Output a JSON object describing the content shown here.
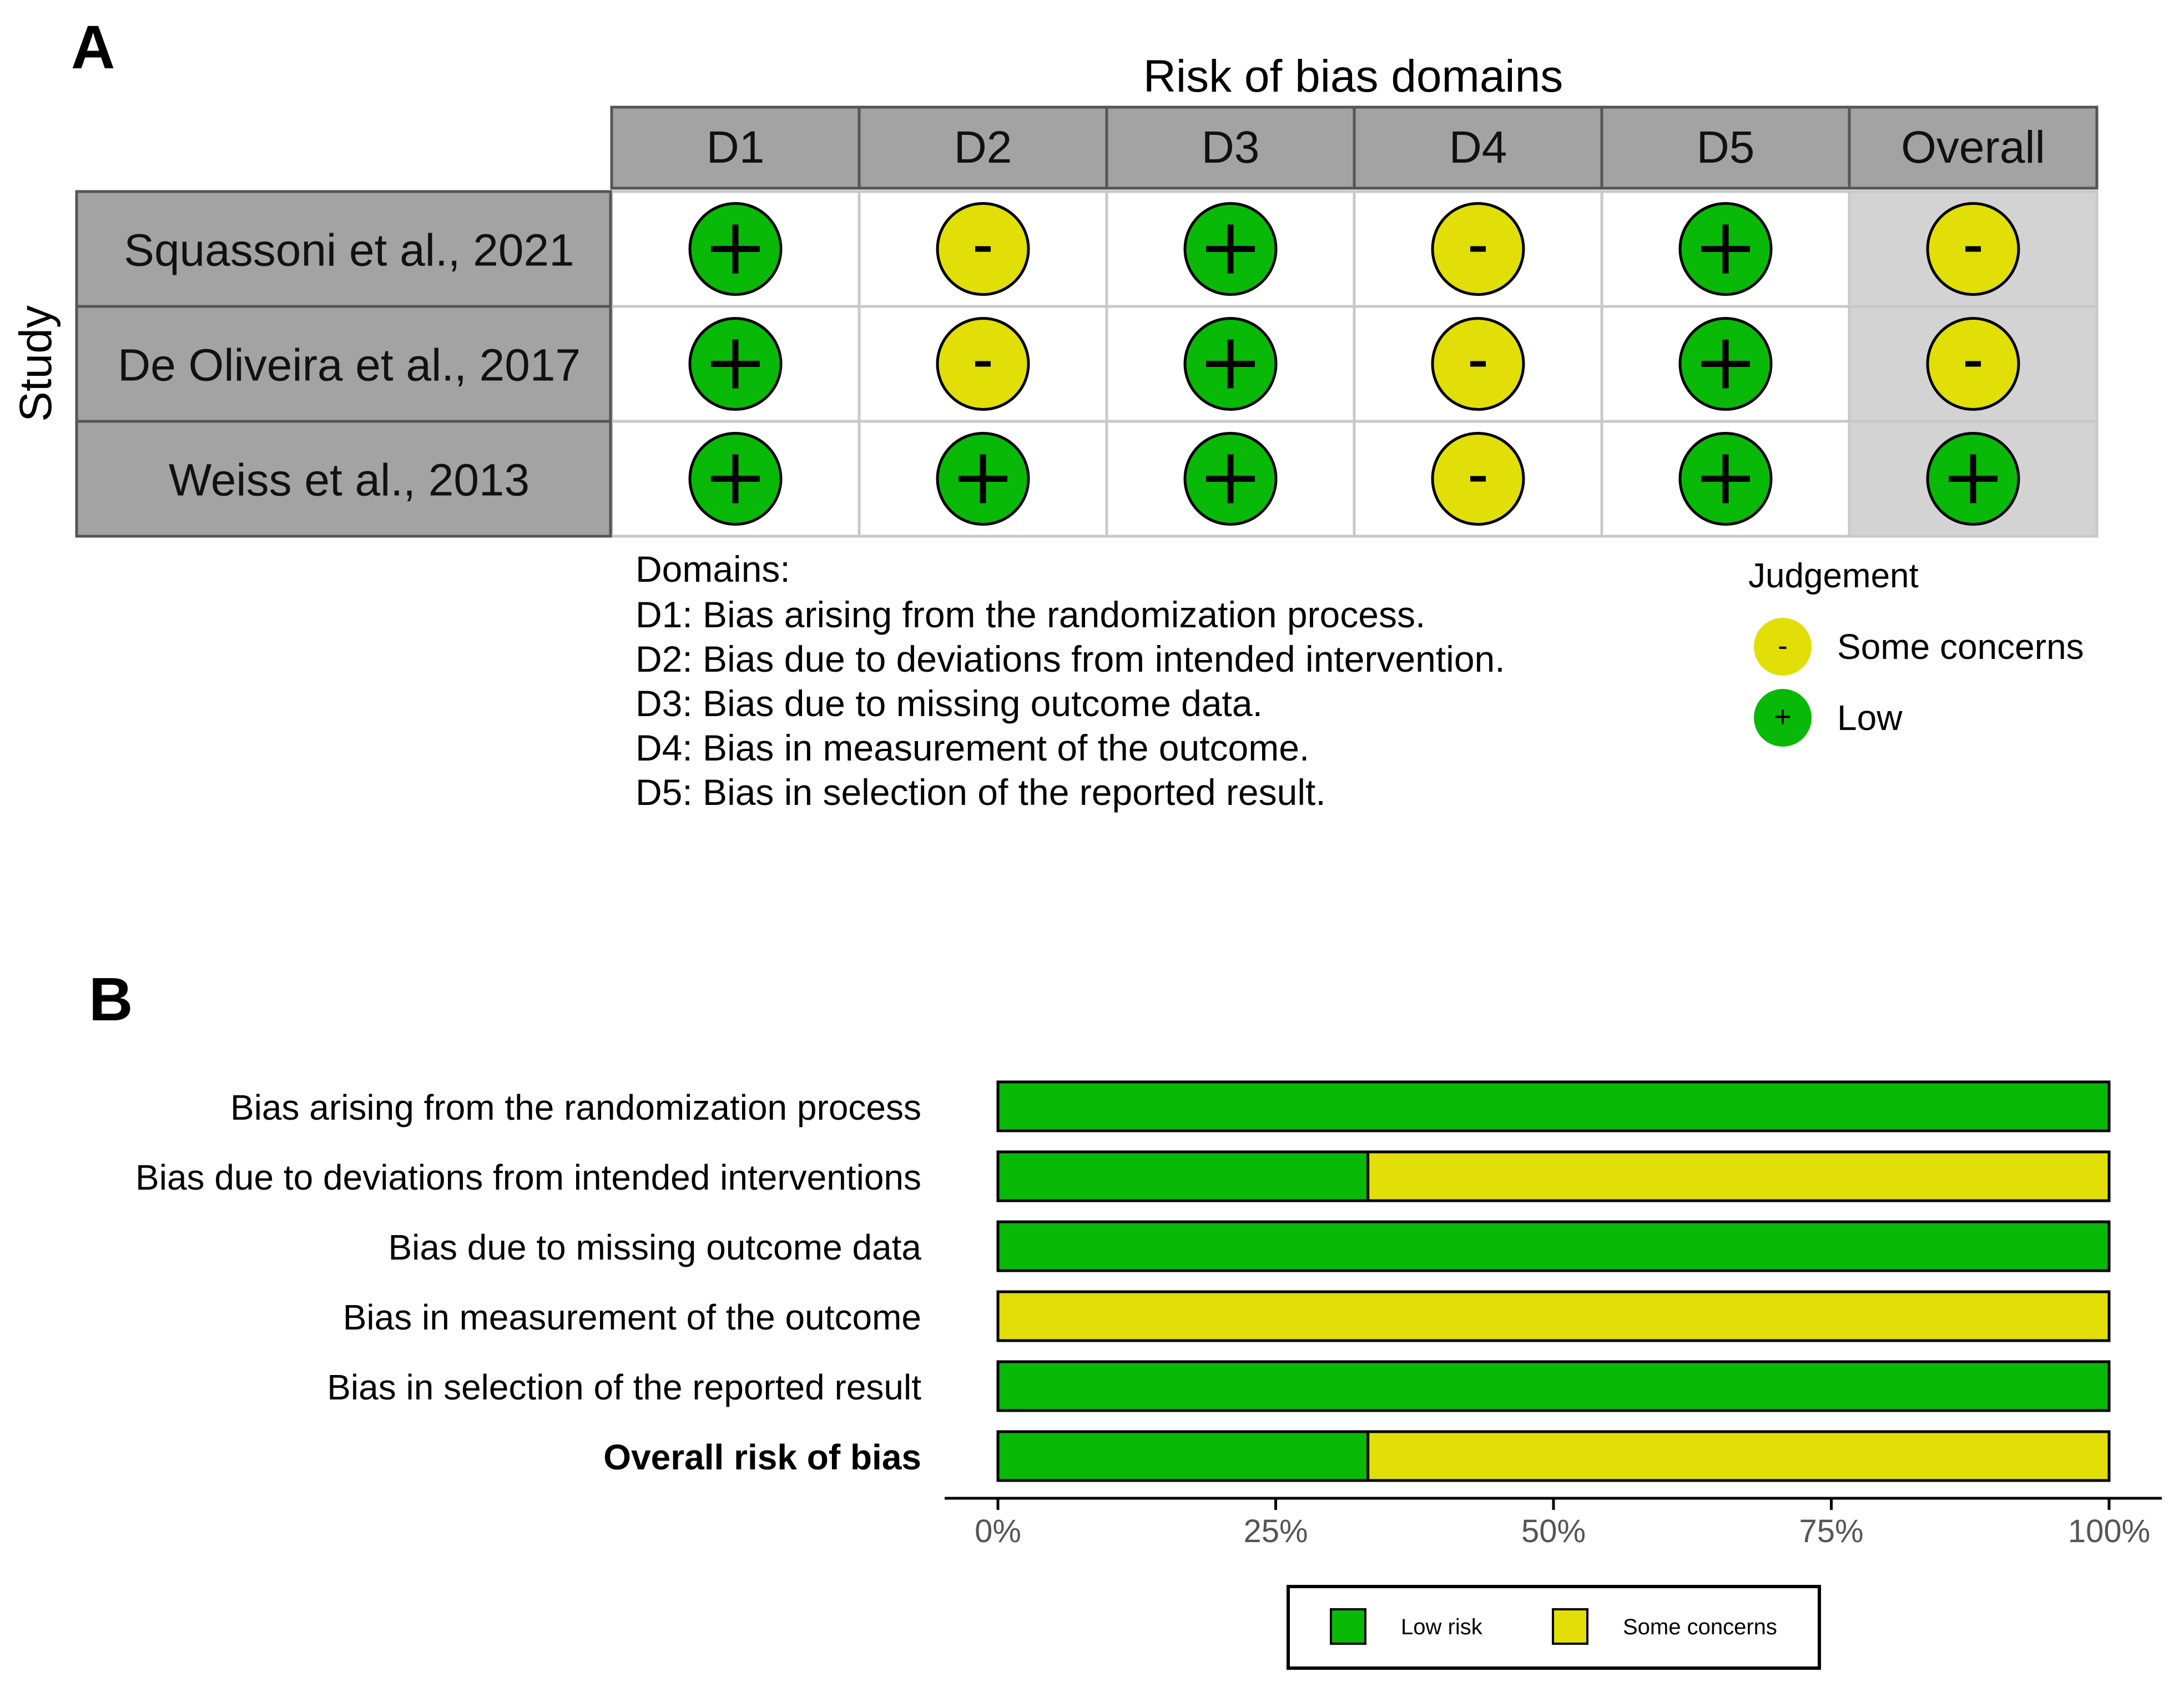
{
  "panel_a": {
    "letter": "A",
    "title": "Risk of bias domains",
    "row_axis_label": "Study",
    "columns": [
      "D1",
      "D2",
      "D3",
      "D4",
      "D5",
      "Overall"
    ],
    "studies": [
      {
        "name": "Squassoni et al., 2021",
        "judgements": [
          "low",
          "some",
          "low",
          "some",
          "low",
          "some"
        ]
      },
      {
        "name": "De Oliveira et al., 2017",
        "judgements": [
          "low",
          "some",
          "low",
          "some",
          "low",
          "some"
        ]
      },
      {
        "name": "Weiss et al., 2013",
        "judgements": [
          "low",
          "low",
          "low",
          "some",
          "low",
          "low"
        ]
      }
    ],
    "domains_heading": "Domains:",
    "domains_lines": [
      "D1: Bias arising from the randomization process.",
      "D2: Bias due to deviations from intended intervention.",
      "D3: Bias due to missing outcome data.",
      "D4: Bias in measurement of the outcome.",
      "D5: Bias in selection of the reported result."
    ],
    "legend_title": "Judgement",
    "legend_items": [
      {
        "key": "some",
        "symbol": "-",
        "label": "Some concerns"
      },
      {
        "key": "low",
        "symbol": "+",
        "label": "Low"
      }
    ]
  },
  "panel_b": {
    "letter": "B"
  },
  "chart_data": {
    "type": "bar",
    "orientation": "horizontal",
    "stacked": true,
    "categories": [
      "Bias arising from the randomization process",
      "Bias due to deviations from intended  interventions",
      "Bias due to missing outcome data",
      "Bias in measurement of the outcome",
      "Bias in selection of the reported result",
      "Overall risk of bias"
    ],
    "bold_category": "Overall risk of bias",
    "series": [
      {
        "name": "Low risk",
        "values": [
          100,
          33.3,
          100,
          0,
          100,
          33.3
        ]
      },
      {
        "name": "Some concerns",
        "values": [
          0,
          66.7,
          0,
          100,
          0,
          66.7
        ]
      }
    ],
    "xlim": [
      0,
      100
    ],
    "xticks": [
      "0%",
      "25%",
      "50%",
      "75%",
      "100%"
    ],
    "legend_placement": "bottom",
    "grid": false
  },
  "colors": {
    "low": "#08B908",
    "some": "#E1DF07",
    "header_fill": "#A3A3A3",
    "overall_fill": "#D3D3D3",
    "grid_line": "#C8C8C8"
  }
}
